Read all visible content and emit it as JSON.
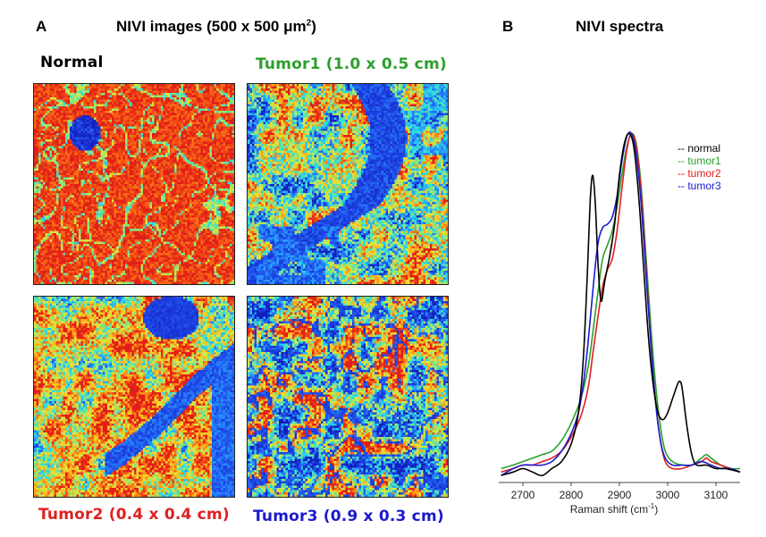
{
  "panel_a": {
    "letter": "A",
    "heading": "NIVI images (500 x 500 μm",
    "heading_sup": "2",
    "heading_end": ")",
    "images": [
      {
        "label": "Normal",
        "color": "#000000",
        "pattern": "normal"
      },
      {
        "label": "Tumor1 (1.0 x 0.5 cm)",
        "color": "#2ca02c",
        "pattern": "tumor1"
      },
      {
        "label": "Tumor2 (0.4 x 0.4 cm)",
        "color": "#e02020",
        "pattern": "tumor2"
      },
      {
        "label": "Tumor3 (0.9 x 0.3 cm)",
        "color": "#1a1ad0",
        "pattern": "tumor3"
      }
    ]
  },
  "panel_b": {
    "letter": "B",
    "heading": "NIVI spectra"
  },
  "chart_data": {
    "type": "line",
    "title": "NIVI spectra",
    "xlabel": "Raman shift (cm",
    "xlabel_sup": "-1",
    "xlabel_end": ")",
    "ylabel": "",
    "xlim": [
      2650,
      3150
    ],
    "ylim": [
      0,
      1.05
    ],
    "x_ticks": [
      2700,
      2800,
      2900,
      3000,
      3100
    ],
    "legend_position": "top-right",
    "series": [
      {
        "name": "-- normal",
        "color": "#000000",
        "x": [
          2655,
          2680,
          2700,
          2720,
          2740,
          2760,
          2780,
          2800,
          2815,
          2825,
          2833,
          2840,
          2845,
          2850,
          2856,
          2862,
          2870,
          2880,
          2890,
          2900,
          2910,
          2920,
          2930,
          2940,
          2950,
          2960,
          2970,
          2980,
          2990,
          3000,
          3010,
          3020,
          3025,
          3030,
          3040,
          3050,
          3060,
          3080,
          3100,
          3120,
          3150
        ],
        "y": [
          0.02,
          0.03,
          0.04,
          0.03,
          0.02,
          0.04,
          0.06,
          0.11,
          0.2,
          0.35,
          0.58,
          0.82,
          0.88,
          0.8,
          0.62,
          0.52,
          0.58,
          0.65,
          0.74,
          0.88,
          0.97,
          1.0,
          0.96,
          0.82,
          0.62,
          0.42,
          0.28,
          0.2,
          0.18,
          0.2,
          0.24,
          0.28,
          0.29,
          0.27,
          0.16,
          0.08,
          0.05,
          0.05,
          0.04,
          0.04,
          0.03
        ]
      },
      {
        "name": "-- tumor1",
        "color": "#2ca02c",
        "x": [
          2655,
          2680,
          2700,
          2720,
          2740,
          2760,
          2780,
          2800,
          2820,
          2835,
          2845,
          2855,
          2865,
          2875,
          2885,
          2895,
          2905,
          2915,
          2925,
          2935,
          2945,
          2955,
          2965,
          2975,
          2985,
          2995,
          3010,
          3030,
          3050,
          3070,
          3080,
          3090,
          3110,
          3130,
          3150
        ],
        "y": [
          0.04,
          0.05,
          0.06,
          0.07,
          0.08,
          0.09,
          0.12,
          0.17,
          0.24,
          0.33,
          0.43,
          0.54,
          0.64,
          0.68,
          0.72,
          0.79,
          0.88,
          0.96,
          1.0,
          0.97,
          0.85,
          0.65,
          0.45,
          0.28,
          0.16,
          0.09,
          0.06,
          0.05,
          0.05,
          0.07,
          0.08,
          0.07,
          0.05,
          0.04,
          0.04
        ]
      },
      {
        "name": "-- tumor2",
        "color": "#e02020",
        "x": [
          2655,
          2680,
          2700,
          2720,
          2740,
          2760,
          2780,
          2800,
          2820,
          2835,
          2845,
          2855,
          2865,
          2875,
          2885,
          2895,
          2905,
          2915,
          2925,
          2935,
          2945,
          2955,
          2965,
          2975,
          2985,
          2995,
          3010,
          3030,
          3050,
          3070,
          3080,
          3090,
          3110,
          3130,
          3150
        ],
        "y": [
          0.03,
          0.04,
          0.05,
          0.05,
          0.06,
          0.07,
          0.09,
          0.13,
          0.19,
          0.27,
          0.37,
          0.47,
          0.56,
          0.61,
          0.64,
          0.72,
          0.84,
          0.95,
          1.0,
          0.96,
          0.83,
          0.62,
          0.4,
          0.23,
          0.12,
          0.06,
          0.04,
          0.04,
          0.05,
          0.06,
          0.07,
          0.06,
          0.05,
          0.04,
          0.03
        ]
      },
      {
        "name": "-- tumor3",
        "color": "#1a1ad0",
        "x": [
          2655,
          2680,
          2700,
          2720,
          2740,
          2760,
          2780,
          2800,
          2815,
          2825,
          2835,
          2845,
          2855,
          2865,
          2875,
          2885,
          2895,
          2905,
          2915,
          2925,
          2935,
          2945,
          2955,
          2965,
          2975,
          2985,
          2995,
          3010,
          3030,
          3050,
          3070,
          3090,
          3110,
          3130,
          3150
        ],
        "y": [
          0.02,
          0.04,
          0.05,
          0.05,
          0.05,
          0.06,
          0.09,
          0.14,
          0.2,
          0.28,
          0.4,
          0.55,
          0.68,
          0.73,
          0.74,
          0.76,
          0.82,
          0.92,
          0.99,
          1.0,
          0.94,
          0.8,
          0.6,
          0.4,
          0.23,
          0.12,
          0.07,
          0.05,
          0.05,
          0.05,
          0.06,
          0.05,
          0.04,
          0.04,
          0.03
        ]
      }
    ]
  }
}
